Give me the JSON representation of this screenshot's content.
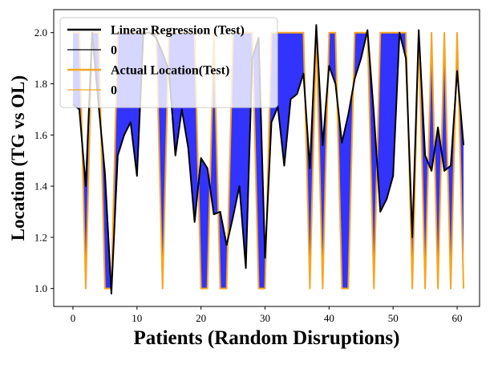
{
  "chart_data": {
    "type": "line",
    "xlabel": "Patients (Random Disruptions)",
    "ylabel": "Location (TG vs OL)",
    "xlim": [
      -3,
      63.5
    ],
    "ylim": [
      0.93,
      2.09
    ],
    "x_ticks": [
      0,
      10,
      20,
      30,
      40,
      50,
      60
    ],
    "y_ticks": [
      1.0,
      1.2,
      1.4,
      1.6,
      1.8,
      2.0
    ],
    "y_tick_labels": [
      "1.0",
      "1.2",
      "1.4",
      "1.6",
      "1.8",
      "2.0"
    ],
    "grid": false,
    "legend_position": "top-left",
    "fill_between_color": "#3333ff",
    "legend": [
      {
        "label": "Linear Regression (Test)",
        "color": "#000000",
        "style": "thick-line"
      },
      {
        "label": "0",
        "color": "#000000",
        "style": "thin-line"
      },
      {
        "label": "Actual Location(Test)",
        "color": "#f5a623",
        "style": "thick-line"
      },
      {
        "label": "0",
        "color": "#f5a623",
        "style": "thin-line"
      }
    ],
    "series": [
      {
        "name": "Linear Regression (Test)",
        "color": "#000000",
        "x": [
          0,
          1,
          2,
          3,
          4,
          5,
          6,
          7,
          8,
          9,
          10,
          11,
          12,
          13,
          14,
          15,
          16,
          17,
          18,
          19,
          20,
          21,
          22,
          23,
          24,
          25,
          26,
          27,
          28,
          29,
          30,
          31,
          32,
          33,
          34,
          35,
          36,
          37,
          38,
          39,
          40,
          41,
          42,
          43,
          44,
          45,
          46,
          47,
          48,
          49,
          50,
          51,
          52,
          53,
          54,
          55,
          56,
          57,
          58,
          59,
          60,
          61
        ],
        "values": [
          1.72,
          1.7,
          1.4,
          2.0,
          1.72,
          1.45,
          0.98,
          1.52,
          1.6,
          1.65,
          1.44,
          2.0,
          2.0,
          1.98,
          1.92,
          1.85,
          1.52,
          1.7,
          1.55,
          1.26,
          1.51,
          1.47,
          1.29,
          1.3,
          1.17,
          1.28,
          1.4,
          1.08,
          1.9,
          1.98,
          1.12,
          1.65,
          1.71,
          1.48,
          1.74,
          1.76,
          1.84,
          1.47,
          2.03,
          1.56,
          1.87,
          1.8,
          1.57,
          1.68,
          1.82,
          1.9,
          2.01,
          1.68,
          1.3,
          1.35,
          1.44,
          2.0,
          1.9,
          1.2,
          2.01,
          1.52,
          1.46,
          1.63,
          1.46,
          1.48,
          1.85,
          1.56
        ]
      },
      {
        "name": "Actual Location(Test)",
        "color": "#f5a623",
        "x": [
          0,
          1,
          2,
          3,
          4,
          5,
          6,
          7,
          8,
          9,
          10,
          11,
          12,
          13,
          14,
          15,
          16,
          17,
          18,
          19,
          20,
          21,
          22,
          23,
          24,
          25,
          26,
          27,
          28,
          29,
          30,
          31,
          32,
          33,
          34,
          35,
          36,
          37,
          38,
          39,
          40,
          41,
          42,
          43,
          44,
          45,
          46,
          47,
          48,
          49,
          50,
          51,
          52,
          53,
          54,
          55,
          56,
          57,
          58,
          59,
          60,
          61
        ],
        "values": [
          2,
          2,
          1,
          2,
          2,
          1,
          1,
          2,
          2,
          2,
          2,
          2,
          2,
          2,
          1,
          2,
          2,
          2,
          2,
          2,
          1,
          1,
          2,
          1,
          1,
          2,
          2,
          2,
          2,
          1,
          1,
          2,
          2,
          2,
          2,
          2,
          2,
          1,
          2,
          1,
          2,
          2,
          1,
          1,
          2,
          2,
          2,
          1,
          2,
          2,
          2,
          2,
          2,
          1,
          2,
          1,
          2,
          1,
          2,
          1,
          2,
          1
        ]
      }
    ]
  }
}
